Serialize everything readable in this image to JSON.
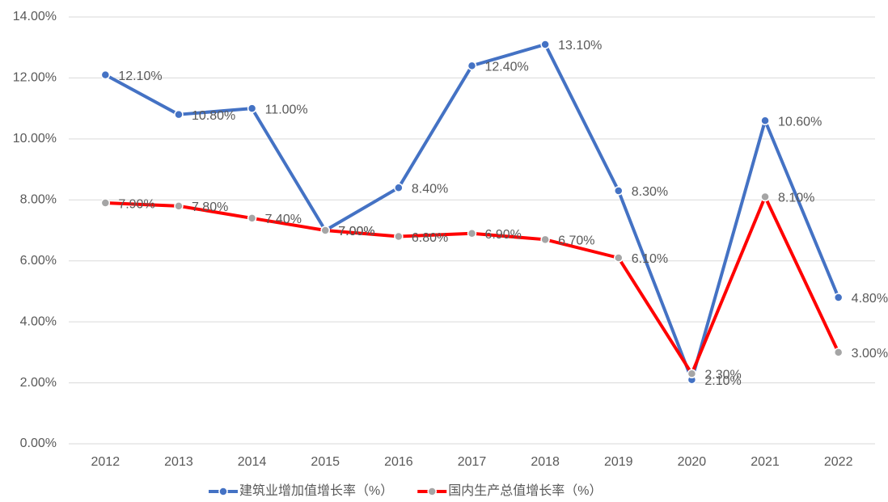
{
  "chart_data": {
    "type": "line",
    "categories": [
      "2012",
      "2013",
      "2014",
      "2015",
      "2016",
      "2017",
      "2018",
      "2019",
      "2020",
      "2021",
      "2022"
    ],
    "series": [
      {
        "name": "建筑业增加值增长率（%）",
        "color": "#4472c4",
        "marker_color": "#4472c4",
        "values": [
          12.1,
          10.8,
          11.0,
          7.0,
          8.4,
          12.4,
          13.1,
          8.3,
          2.1,
          10.6,
          4.8
        ],
        "value_labels": [
          "12.10%",
          "10.80%",
          "11.00%",
          "7.00%",
          "8.40%",
          "12.40%",
          "13.10%",
          "8.30%",
          "2.10%",
          "10.60%",
          "4.80%"
        ]
      },
      {
        "name": "国内生产总值增长率（%）",
        "color": "#ff0000",
        "marker_color": "#a5a5a5",
        "values": [
          7.9,
          7.8,
          7.4,
          7.0,
          6.8,
          6.9,
          6.7,
          6.1,
          2.3,
          8.1,
          3.0
        ],
        "value_labels": [
          "7.90%",
          "7.80%",
          "7.40%",
          "7.00%",
          "6.80%",
          "6.90%",
          "6.70%",
          "6.10%",
          "2.30%",
          "8.10%",
          "3.00%"
        ]
      }
    ],
    "ylim": [
      0,
      14
    ],
    "yticks": [
      {
        "value": 0,
        "label": "0.00%"
      },
      {
        "value": 2,
        "label": "2.00%"
      },
      {
        "value": 4,
        "label": "4.00%"
      },
      {
        "value": 6,
        "label": "6.00%"
      },
      {
        "value": 8,
        "label": "8.00%"
      },
      {
        "value": 10,
        "label": "10.00%"
      },
      {
        "value": 12,
        "label": "12.00%"
      },
      {
        "value": 14,
        "label": "14.00%"
      }
    ],
    "grid": true,
    "legend": "bottom"
  }
}
